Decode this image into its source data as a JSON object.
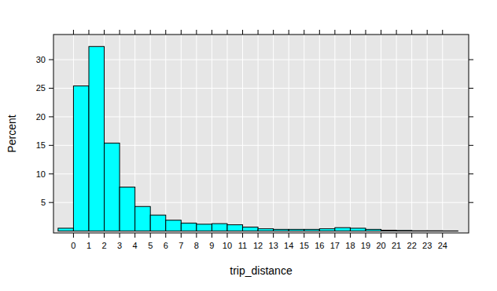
{
  "chart_data": {
    "type": "histogram",
    "x_label": "trip_distance",
    "y_label": "Percent",
    "bins": [
      -1,
      0,
      1,
      2,
      3,
      4,
      5,
      6,
      7,
      8,
      9,
      10,
      11,
      12,
      13,
      14,
      15,
      16,
      17,
      18,
      19,
      20,
      21,
      22,
      23,
      24,
      25
    ],
    "values": [
      0.5,
      25.4,
      32.3,
      15.4,
      7.7,
      4.3,
      2.8,
      1.9,
      1.4,
      1.2,
      1.3,
      1.1,
      0.7,
      0.4,
      0.3,
      0.3,
      0.3,
      0.4,
      0.6,
      0.5,
      0.3,
      0.15,
      0.1,
      0.05,
      0.05,
      0.03
    ],
    "color": "#00ffff",
    "xlim": [
      -1.3,
      25.7
    ],
    "xticks": [
      0,
      1,
      2,
      3,
      4,
      5,
      6,
      7,
      8,
      9,
      10,
      11,
      12,
      13,
      14,
      15,
      16,
      17,
      18,
      19,
      20,
      21,
      22,
      23,
      24
    ],
    "ylim": [
      -0.33,
      34.4
    ],
    "yticks": [
      5,
      10,
      15,
      20,
      25,
      30
    ],
    "grid": true
  }
}
